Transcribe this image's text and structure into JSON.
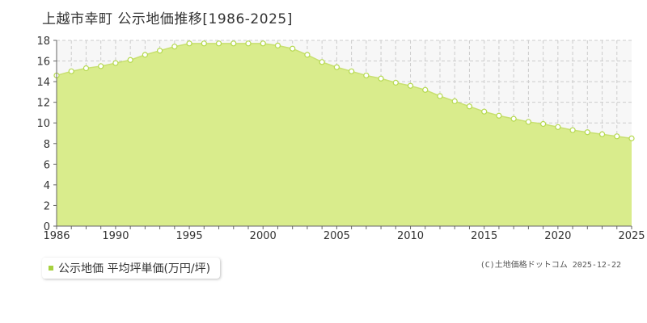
{
  "page": {
    "title": "上越市幸町 公示地価推移[1986-2025]"
  },
  "legend": {
    "label": "公示地価 平均坪単価(万円/坪)"
  },
  "copyright": "(C)土地価格ドットコム 2025-12-22",
  "colors": {
    "area_fill": "#d9ec8c",
    "line": "#c8e070",
    "marker": "#b5d94f",
    "grid": "#cccccc",
    "plot_bg": "#f7f7f7",
    "legend_swatch": "#a7d13f"
  },
  "chart_data": {
    "type": "area",
    "x": [
      1986,
      1987,
      1988,
      1989,
      1990,
      1991,
      1992,
      1993,
      1994,
      1995,
      1996,
      1997,
      1998,
      1999,
      2000,
      2001,
      2002,
      2003,
      2004,
      2005,
      2006,
      2007,
      2008,
      2009,
      2010,
      2011,
      2012,
      2013,
      2014,
      2015,
      2016,
      2017,
      2018,
      2019,
      2020,
      2021,
      2022,
      2023,
      2024,
      2025
    ],
    "series": [
      {
        "name": "公示地価 平均坪単価(万円/坪)",
        "values": [
          14.6,
          15.0,
          15.3,
          15.5,
          15.8,
          16.1,
          16.6,
          17.0,
          17.4,
          17.7,
          17.7,
          17.7,
          17.7,
          17.7,
          17.7,
          17.5,
          17.2,
          16.6,
          15.9,
          15.4,
          15.0,
          14.6,
          14.3,
          13.9,
          13.6,
          13.2,
          12.6,
          12.1,
          11.6,
          11.1,
          10.7,
          10.4,
          10.1,
          9.9,
          9.6,
          9.3,
          9.1,
          8.9,
          8.7,
          8.5
        ]
      }
    ],
    "ylim": [
      0,
      18
    ],
    "yticks": [
      0,
      2,
      4,
      6,
      8,
      10,
      12,
      14,
      16,
      18
    ],
    "xlim": [
      1986,
      2025
    ],
    "xticks": [
      1986,
      1990,
      1995,
      2000,
      2005,
      2010,
      2015,
      2020,
      2025
    ],
    "grid": true,
    "legend_position": "bottom-left"
  }
}
